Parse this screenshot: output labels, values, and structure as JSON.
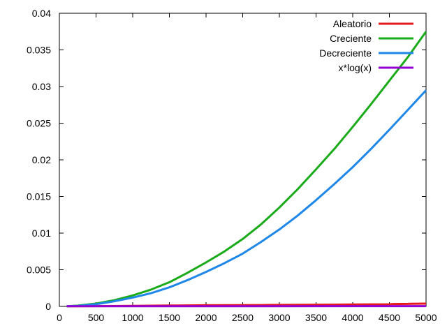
{
  "chart_data": {
    "type": "line",
    "title": "",
    "xlabel": "",
    "ylabel": "",
    "xlim": [
      0,
      5000
    ],
    "ylim": [
      0,
      0.04
    ],
    "grid": false,
    "legend_position": "top-right",
    "x_ticks": [
      "0",
      "500",
      "1000",
      "1500",
      "2000",
      "2500",
      "3000",
      "3500",
      "4000",
      "4500",
      "5000"
    ],
    "y_ticks": [
      "0",
      "0.005",
      "0.01",
      "0.015",
      "0.02",
      "0.025",
      "0.03",
      "0.035",
      "0.04"
    ],
    "series": [
      {
        "name": "Aleatorio",
        "color": "#e41a1c",
        "x": [
          100,
          500,
          1000,
          1500,
          1750,
          2000,
          2750,
          3000,
          3750,
          4000,
          4500,
          4550,
          4750,
          4800,
          5000
        ],
        "y": [
          2e-05,
          4e-05,
          8e-05,
          0.00011,
          0.00013,
          0.00015,
          0.00018,
          0.0002,
          0.00024,
          0.00026,
          0.00029,
          0.00032,
          0.00034,
          0.00036,
          0.00038
        ]
      },
      {
        "name": "Creciente",
        "color": "#1aab1a",
        "x": [
          100,
          250,
          500,
          750,
          1000,
          1250,
          1500,
          1750,
          2000,
          2250,
          2500,
          2750,
          3000,
          3250,
          3500,
          3750,
          4000,
          4250,
          4500,
          4750,
          5000
        ],
        "y": [
          2e-05,
          0.0001,
          0.00038,
          0.00085,
          0.0015,
          0.0023,
          0.0033,
          0.0046,
          0.006,
          0.0075,
          0.0092,
          0.0112,
          0.0135,
          0.016,
          0.0187,
          0.0215,
          0.0245,
          0.0276,
          0.0308,
          0.034,
          0.0375
        ]
      },
      {
        "name": "Decreciente",
        "color": "#1f87e8",
        "x": [
          100,
          250,
          500,
          750,
          1000,
          1250,
          1500,
          1750,
          2000,
          2250,
          2500,
          2750,
          3000,
          3250,
          3500,
          3750,
          4000,
          4250,
          4500,
          4750,
          5000
        ],
        "y": [
          2e-05,
          8e-05,
          0.0003,
          0.0007,
          0.0012,
          0.0018,
          0.0026,
          0.0036,
          0.0047,
          0.0059,
          0.0072,
          0.0088,
          0.0105,
          0.0124,
          0.0145,
          0.0167,
          0.019,
          0.0215,
          0.0241,
          0.0268,
          0.0295
        ]
      },
      {
        "name": "x*log(x)",
        "color": "#9400d3",
        "x": [
          100,
          5000
        ],
        "y": [
          2e-05,
          4e-05
        ]
      }
    ]
  }
}
